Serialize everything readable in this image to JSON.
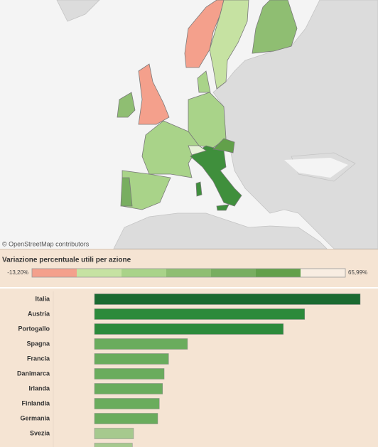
{
  "map": {
    "attribution": "© OpenStreetMap contributors"
  },
  "legend": {
    "title": "Variazione percentuale utili per azione",
    "min": {
      "value": -13.2,
      "label": "-13,20%"
    },
    "max": {
      "value": 65.99,
      "label": "65,99%"
    },
    "colors": [
      "#f4a08c",
      "#c6e2a2",
      "#a9d389",
      "#8fbe72",
      "#78ae60",
      "#62a04a",
      "#f8ede2"
    ]
  },
  "chart_data": {
    "type": "bar",
    "orientation": "horizontal",
    "categories": [
      "Italia",
      "Austria",
      "Portogallo",
      "Spagna",
      "Francia",
      "Danimarca",
      "Irlanda",
      "Finlandia",
      "Germania",
      "Svezia",
      null
    ],
    "values": [
      66,
      52.2,
      46.9,
      23.1,
      18.4,
      17.3,
      16.9,
      16.1,
      15.7,
      9.7,
      9.4
    ],
    "colors": [
      "#1b6a31",
      "#2c8a3b",
      "#2c8a3b",
      "#6aac5d",
      "#6aac5d",
      "#6aac5d",
      "#6aac5d",
      "#6aac5d",
      "#6aac5d",
      "#a6c98e",
      "#a6c98e"
    ],
    "xlim": [
      0,
      66
    ]
  }
}
